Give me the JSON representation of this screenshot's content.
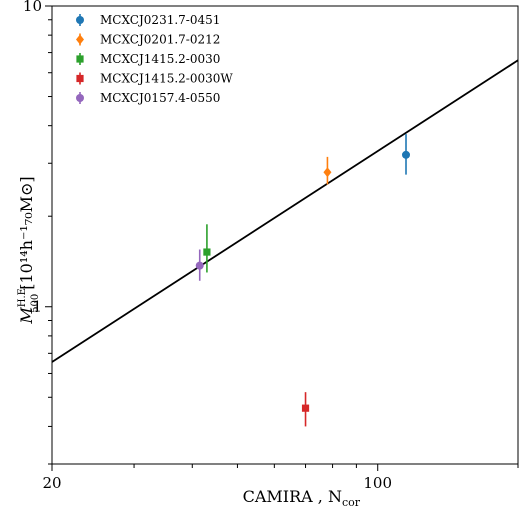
{
  "chart_data": {
    "type": "scatter",
    "title": "",
    "xlabel": "CAMIRA , N",
    "xlabel_sub": "cor",
    "ylabel": "M",
    "ylabel_sub": "500",
    "ylabel_sup": "H.E.",
    "ylabel_units": "[10¹⁴h⁻¹₇₀M⊙]",
    "xscale": "log",
    "yscale": "log",
    "xlim": [
      20,
      200
    ],
    "ylim": [
      0.3,
      10
    ],
    "x_ticks": [
      {
        "value": 20,
        "label": "20"
      },
      {
        "value": 100,
        "label": "100"
      }
    ],
    "y_ticks": [
      {
        "value": 1,
        "label": "1"
      },
      {
        "value": 10,
        "label": "10"
      }
    ],
    "grid": false,
    "legend_position": "top-left",
    "fit_line": {
      "x": [
        20,
        200
      ],
      "y": [
        0.655,
        6.6
      ]
    },
    "series": [
      {
        "name": "MCXCJ0231.7-0451",
        "color": "#1f77b4",
        "marker": "circle",
        "x": 115,
        "y": 3.2,
        "yerr_low": 2.75,
        "yerr_high": 3.75
      },
      {
        "name": "MCXCJ0201.7-0212",
        "color": "#ff7f0e",
        "marker": "diamond",
        "x": 78,
        "y": 2.8,
        "yerr_low": 2.55,
        "yerr_high": 3.15
      },
      {
        "name": "MCXCJ1415.2-0030",
        "color": "#2ca02c",
        "marker": "square",
        "x": 43,
        "y": 1.52,
        "yerr_low": 1.3,
        "yerr_high": 1.88
      },
      {
        "name": "MCXCJ1415.2-0030W",
        "color": "#d62728",
        "marker": "square",
        "x": 70,
        "y": 0.46,
        "yerr_low": 0.4,
        "yerr_high": 0.52
      },
      {
        "name": "MCXCJ0157.4-0550",
        "color": "#9467bd",
        "marker": "circle",
        "x": 41.5,
        "y": 1.37,
        "yerr_low": 1.22,
        "yerr_high": 1.55
      }
    ]
  }
}
